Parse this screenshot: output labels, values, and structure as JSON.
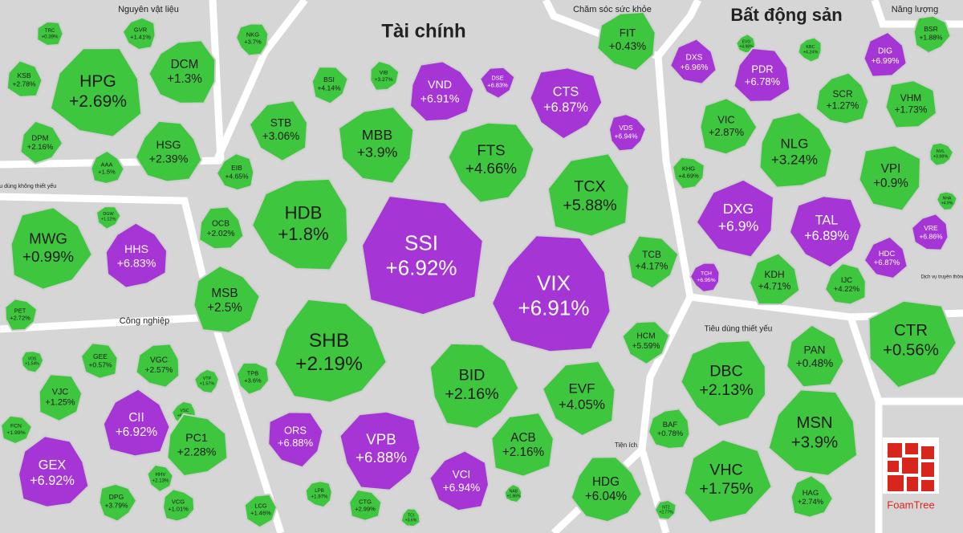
{
  "groups": [
    {
      "title": "Nguyên vật liệu",
      "cells": [
        {
          "ticker": "TRC",
          "change": "+0.39%",
          "color": "#3fc63f"
        },
        {
          "ticker": "GVR",
          "change": "+1.41%",
          "color": "#3fc63f"
        },
        {
          "ticker": "NKG",
          "change": "+3.7%",
          "color": "#3fc63f"
        },
        {
          "ticker": "KSB",
          "change": "+2.78%",
          "color": "#3fc63f"
        },
        {
          "ticker": "HPG",
          "change": "+2.69%",
          "color": "#3fc63f"
        },
        {
          "ticker": "DCM",
          "change": "+1.3%",
          "color": "#3fc63f"
        },
        {
          "ticker": "DPM",
          "change": "+2.16%",
          "color": "#3fc63f"
        },
        {
          "ticker": "AAA",
          "change": "+1.5%",
          "color": "#3fc63f"
        },
        {
          "ticker": "HSG",
          "change": "+2.39%",
          "color": "#3fc63f"
        }
      ]
    },
    {
      "title": "Tiêu dùng không thiết yếu",
      "cells": [
        {
          "ticker": "MWG",
          "change": "+0.99%",
          "color": "#3fc63f"
        },
        {
          "ticker": "HHS",
          "change": "+6.83%",
          "color": "#a535d4"
        },
        {
          "ticker": "DGW",
          "change": "+1.12%",
          "color": "#3fc63f"
        },
        {
          "ticker": "PET",
          "change": "+2.72%",
          "color": "#3fc63f"
        }
      ]
    },
    {
      "title": "Công nghiệp",
      "cells": [
        {
          "ticker": "VOS",
          "change": "+1.54%",
          "color": "#3fc63f"
        },
        {
          "ticker": "GEE",
          "change": "+0.57%",
          "color": "#3fc63f"
        },
        {
          "ticker": "VGC",
          "change": "+2.57%",
          "color": "#3fc63f"
        },
        {
          "ticker": "VTP",
          "change": "+1.57%",
          "color": "#3fc63f"
        },
        {
          "ticker": "VJC",
          "change": "+1.25%",
          "color": "#3fc63f"
        },
        {
          "ticker": "CII",
          "change": "+6.92%",
          "color": "#a535d4"
        },
        {
          "ticker": "VSC",
          "change": "+6.25%",
          "color": "#3fc63f"
        },
        {
          "ticker": "FCN",
          "change": "+1.99%",
          "color": "#3fc63f"
        },
        {
          "ticker": "PC1",
          "change": "+2.28%",
          "color": "#3fc63f"
        },
        {
          "ticker": "GEX",
          "change": "+6.92%",
          "color": "#a535d4"
        },
        {
          "ticker": "HHV",
          "change": "+2.13%",
          "color": "#3fc63f"
        },
        {
          "ticker": "DPG",
          "change": "+3.79%",
          "color": "#3fc63f"
        },
        {
          "ticker": "VCG",
          "change": "+1.01%",
          "color": "#3fc63f"
        },
        {
          "ticker": "LCG",
          "change": "+1.46%",
          "color": "#3fc63f"
        }
      ]
    },
    {
      "title": "Tài chính",
      "cells": [
        {
          "ticker": "BSI",
          "change": "+4.14%",
          "color": "#3fc63f"
        },
        {
          "ticker": "VIB",
          "change": "+3.27%",
          "color": "#3fc63f"
        },
        {
          "ticker": "VND",
          "change": "+6.91%",
          "color": "#a535d4"
        },
        {
          "ticker": "DSE",
          "change": "+6.83%",
          "color": "#a535d4"
        },
        {
          "ticker": "CTS",
          "change": "+6.87%",
          "color": "#a535d4"
        },
        {
          "ticker": "VDS",
          "change": "+6.94%",
          "color": "#a535d4"
        },
        {
          "ticker": "STB",
          "change": "+3.06%",
          "color": "#3fc63f"
        },
        {
          "ticker": "MBB",
          "change": "+3.9%",
          "color": "#3fc63f"
        },
        {
          "ticker": "FTS",
          "change": "+4.66%",
          "color": "#3fc63f"
        },
        {
          "ticker": "TCX",
          "change": "+5.88%",
          "color": "#3fc63f"
        },
        {
          "ticker": "EIB",
          "change": "+4.65%",
          "color": "#3fc63f"
        },
        {
          "ticker": "HDB",
          "change": "+1.8%",
          "color": "#3fc63f"
        },
        {
          "ticker": "SSI",
          "change": "+6.92%",
          "color": "#a535d4"
        },
        {
          "ticker": "OCB",
          "change": "+2.02%",
          "color": "#3fc63f"
        },
        {
          "ticker": "VIX",
          "change": "+6.91%",
          "color": "#a535d4"
        },
        {
          "ticker": "TCB",
          "change": "+4.17%",
          "color": "#3fc63f"
        },
        {
          "ticker": "MSB",
          "change": "+2.5%",
          "color": "#3fc63f"
        },
        {
          "ticker": "SHB",
          "change": "+2.19%",
          "color": "#3fc63f"
        },
        {
          "ticker": "HCM",
          "change": "+5.59%",
          "color": "#3fc63f"
        },
        {
          "ticker": "TPB",
          "change": "+3.6%",
          "color": "#3fc63f"
        },
        {
          "ticker": "BID",
          "change": "+2.16%",
          "color": "#3fc63f"
        },
        {
          "ticker": "EVF",
          "change": "+4.05%",
          "color": "#3fc63f"
        },
        {
          "ticker": "ORS",
          "change": "+6.88%",
          "color": "#a535d4"
        },
        {
          "ticker": "VPB",
          "change": "+6.88%",
          "color": "#a535d4"
        },
        {
          "ticker": "ACB",
          "change": "+2.16%",
          "color": "#3fc63f"
        },
        {
          "ticker": "VCI",
          "change": "+6.94%",
          "color": "#a535d4"
        },
        {
          "ticker": "LPB",
          "change": "+1.97%",
          "color": "#3fc63f"
        },
        {
          "ticker": "CTG",
          "change": "+2.99%",
          "color": "#3fc63f"
        },
        {
          "ticker": "TCI",
          "change": "+3.6%",
          "color": "#3fc63f"
        },
        {
          "ticker": "NAB",
          "change": "+1.86%",
          "color": "#3fc63f"
        }
      ]
    },
    {
      "title": "Chăm sóc sức khỏe",
      "cells": [
        {
          "ticker": "FIT",
          "change": "+0.43%",
          "color": "#3fc63f"
        }
      ]
    },
    {
      "title": "Tiện ích",
      "cells": [
        {
          "ticker": "HDG",
          "change": "+6.04%",
          "color": "#3fc63f"
        },
        {
          "ticker": "NT2",
          "change": "+2.77%",
          "color": "#3fc63f"
        }
      ]
    },
    {
      "title": "Bất động sản",
      "cells": [
        {
          "ticker": "DXS",
          "change": "+6.96%",
          "color": "#a535d4"
        },
        {
          "ticker": "EVG",
          "change": "+4.98%",
          "color": "#3fc63f"
        },
        {
          "ticker": "KBC",
          "change": "+4.24%",
          "color": "#3fc63f"
        },
        {
          "ticker": "DIG",
          "change": "+6.99%",
          "color": "#a535d4"
        },
        {
          "ticker": "PDR",
          "change": "+6.78%",
          "color": "#a535d4"
        },
        {
          "ticker": "SCR",
          "change": "+1.27%",
          "color": "#3fc63f"
        },
        {
          "ticker": "VHM",
          "change": "+1.73%",
          "color": "#3fc63f"
        },
        {
          "ticker": "VIC",
          "change": "+2.87%",
          "color": "#3fc63f"
        },
        {
          "ticker": "NLG",
          "change": "+3.24%",
          "color": "#3fc63f"
        },
        {
          "ticker": "VPI",
          "change": "+0.9%",
          "color": "#3fc63f"
        },
        {
          "ticker": "KHG",
          "change": "+4.69%",
          "color": "#3fc63f"
        },
        {
          "ticker": "NVL",
          "change": "+3.88%",
          "color": "#3fc63f"
        },
        {
          "ticker": "DXG",
          "change": "+6.9%",
          "color": "#a535d4"
        },
        {
          "ticker": "TAL",
          "change": "+6.89%",
          "color": "#a535d4"
        },
        {
          "ticker": "NHA",
          "change": "+4.9%",
          "color": "#3fc63f"
        },
        {
          "ticker": "HDC",
          "change": "+6.87%",
          "color": "#a535d4"
        },
        {
          "ticker": "VRE",
          "change": "+6.86%",
          "color": "#a535d4"
        },
        {
          "ticker": "TCH",
          "change": "+6.95%",
          "color": "#a535d4"
        },
        {
          "ticker": "KDH",
          "change": "+4.71%",
          "color": "#3fc63f"
        },
        {
          "ticker": "IJC",
          "change": "+4.22%",
          "color": "#3fc63f"
        }
      ]
    },
    {
      "title": "Năng lượng",
      "cells": [
        {
          "ticker": "BSR",
          "change": "+1.88%",
          "color": "#3fc63f"
        }
      ]
    },
    {
      "title": "Tiêu dùng thiết yếu",
      "cells": [
        {
          "ticker": "DBC",
          "change": "+2.13%",
          "color": "#3fc63f"
        },
        {
          "ticker": "PAN",
          "change": "+0.48%",
          "color": "#3fc63f"
        },
        {
          "ticker": "MSN",
          "change": "+3.9%",
          "color": "#3fc63f"
        },
        {
          "ticker": "BAF",
          "change": "+0.78%",
          "color": "#3fc63f"
        },
        {
          "ticker": "VHC",
          "change": "+1.75%",
          "color": "#3fc63f"
        },
        {
          "ticker": "HAG",
          "change": "+2.74%",
          "color": "#3fc63f"
        }
      ]
    },
    {
      "title": "Dịch vụ truyền thông",
      "cells": [
        {
          "ticker": "CTR",
          "change": "+0.56%",
          "color": "#3fc63f"
        }
      ]
    }
  ],
  "logo": "FoamTree"
}
